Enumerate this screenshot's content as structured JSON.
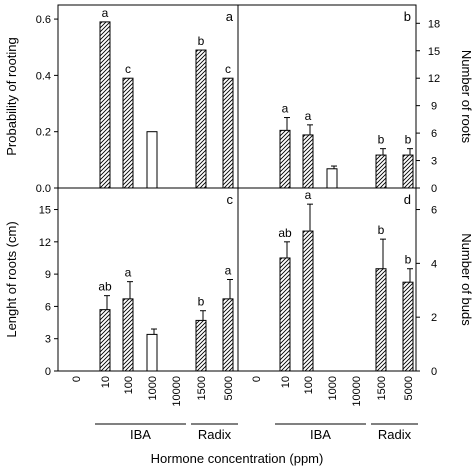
{
  "figure": {
    "xlabel": "Hormone concentration (ppm)",
    "categories": [
      "0",
      "10",
      "100",
      "1000",
      "10000",
      "1500",
      "5000"
    ],
    "groups": [
      {
        "label": "IBA",
        "from": 1,
        "to": 4
      },
      {
        "label": "Radix",
        "from": 5,
        "to": 6
      }
    ],
    "colors": {
      "axis": "#000000",
      "hatched_fill": "#ffffff",
      "plain_fill": "#ffffff"
    }
  },
  "chart_data": [
    {
      "panel": "a",
      "type": "bar",
      "ylabel": "Probability of rooting",
      "y_side": "left",
      "ylim": [
        0,
        0.65
      ],
      "yticks": [
        "0.0",
        "0.2",
        "0.4",
        "0.6"
      ],
      "ytick_values": [
        0,
        0.2,
        0.4,
        0.6
      ],
      "bars": [
        {
          "category": "10",
          "value": 0.59,
          "error": 0,
          "label": "a",
          "style": "hatched"
        },
        {
          "category": "100",
          "value": 0.39,
          "error": 0,
          "label": "c",
          "style": "hatched"
        },
        {
          "category": "1000",
          "value": 0.2,
          "error": 0,
          "label": "",
          "style": "plain"
        },
        {
          "category": "1500",
          "value": 0.49,
          "error": 0,
          "label": "b",
          "style": "hatched"
        },
        {
          "category": "5000",
          "value": 0.39,
          "error": 0,
          "label": "c",
          "style": "hatched"
        }
      ]
    },
    {
      "panel": "b",
      "type": "bar",
      "ylabel": "Number of roots",
      "y_side": "right",
      "ylim": [
        0,
        20
      ],
      "yticks": [
        "0",
        "3",
        "6",
        "9",
        "12",
        "15",
        "18"
      ],
      "ytick_values": [
        0,
        3,
        6,
        9,
        12,
        15,
        18
      ],
      "bars": [
        {
          "category": "10",
          "value": 6.3,
          "error": 1.4,
          "label": "a",
          "style": "hatched"
        },
        {
          "category": "100",
          "value": 5.8,
          "error": 1.1,
          "label": "a",
          "style": "hatched"
        },
        {
          "category": "1000",
          "value": 2.1,
          "error": 0.3,
          "label": "",
          "style": "plain"
        },
        {
          "category": "1500",
          "value": 3.6,
          "error": 0.7,
          "label": "b",
          "style": "hatched"
        },
        {
          "category": "5000",
          "value": 3.6,
          "error": 0.7,
          "label": "b",
          "style": "hatched"
        }
      ]
    },
    {
      "panel": "c",
      "type": "bar",
      "ylabel": "Lenght of roots (cm)",
      "y_side": "left",
      "ylim": [
        0,
        17
      ],
      "yticks": [
        "0",
        "3",
        "6",
        "9",
        "12",
        "15"
      ],
      "ytick_values": [
        0,
        3,
        6,
        9,
        12,
        15
      ],
      "bars": [
        {
          "category": "10",
          "value": 5.7,
          "error": 1.3,
          "label": "ab",
          "style": "hatched"
        },
        {
          "category": "100",
          "value": 6.7,
          "error": 1.6,
          "label": "a",
          "style": "hatched"
        },
        {
          "category": "1000",
          "value": 3.4,
          "error": 0.5,
          "label": "",
          "style": "plain"
        },
        {
          "category": "1500",
          "value": 4.7,
          "error": 0.9,
          "label": "b",
          "style": "hatched"
        },
        {
          "category": "5000",
          "value": 6.7,
          "error": 1.8,
          "label": "a",
          "style": "hatched"
        }
      ]
    },
    {
      "panel": "d",
      "type": "bar",
      "ylabel": "Number of buds",
      "y_side": "right",
      "ylim": [
        0,
        6.8
      ],
      "yticks": [
        "0",
        "2",
        "4",
        "6"
      ],
      "ytick_values": [
        0,
        2,
        4,
        6
      ],
      "bars": [
        {
          "category": "10",
          "value": 4.2,
          "error": 0.6,
          "label": "ab",
          "style": "hatched"
        },
        {
          "category": "100",
          "value": 5.2,
          "error": 1.0,
          "label": "a",
          "style": "hatched"
        },
        {
          "category": "1500",
          "value": 3.8,
          "error": 1.1,
          "label": "b",
          "style": "hatched"
        },
        {
          "category": "5000",
          "value": 3.3,
          "error": 0.5,
          "label": "b",
          "style": "hatched"
        }
      ]
    }
  ]
}
